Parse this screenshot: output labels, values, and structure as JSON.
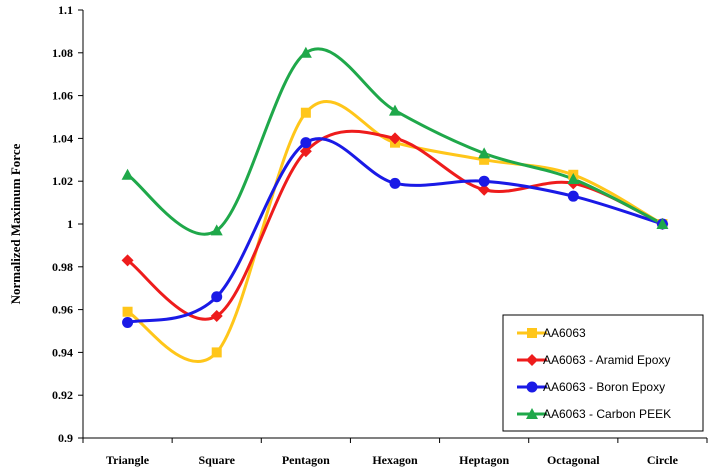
{
  "chart_data": {
    "type": "line",
    "title": "",
    "xlabel": "",
    "ylabel": "Normalized Maximum Force",
    "categories": [
      "Triangle",
      "Square",
      "Pentagon",
      "Hexagon",
      "Heptagon",
      "Octagonal",
      "Circle"
    ],
    "ylim": [
      0.9,
      1.1
    ],
    "yticks": [
      0.9,
      0.92,
      0.94,
      0.96,
      0.98,
      1,
      1.02,
      1.04,
      1.06,
      1.08,
      1.1
    ],
    "ytick_labels": [
      "0.9",
      "0.92",
      "0.94",
      "0.96",
      "0.98",
      "1",
      "1.02",
      "1.04",
      "1.06",
      "1.08",
      "1.1"
    ],
    "grid": false,
    "smooth": true,
    "legend_position": "bottom-right",
    "series": [
      {
        "name": "AA6063",
        "color": "#FFC61A",
        "marker": "square",
        "values": [
          0.959,
          0.94,
          1.052,
          1.038,
          1.03,
          1.023,
          1.0
        ]
      },
      {
        "name": "AA6063 - Aramid Epoxy",
        "color": "#EE1C1C",
        "marker": "diamond",
        "values": [
          0.983,
          0.957,
          1.034,
          1.04,
          1.016,
          1.019,
          1.0
        ]
      },
      {
        "name": "AA6063 - Boron Epoxy",
        "color": "#1A1AE6",
        "marker": "circle",
        "values": [
          0.954,
          0.966,
          1.038,
          1.019,
          1.02,
          1.013,
          1.0
        ]
      },
      {
        "name": "AA6063 - Carbon PEEK",
        "color": "#1FA84A",
        "marker": "triangle",
        "values": [
          1.023,
          0.997,
          1.08,
          1.053,
          1.033,
          1.021,
          1.0
        ]
      }
    ]
  }
}
